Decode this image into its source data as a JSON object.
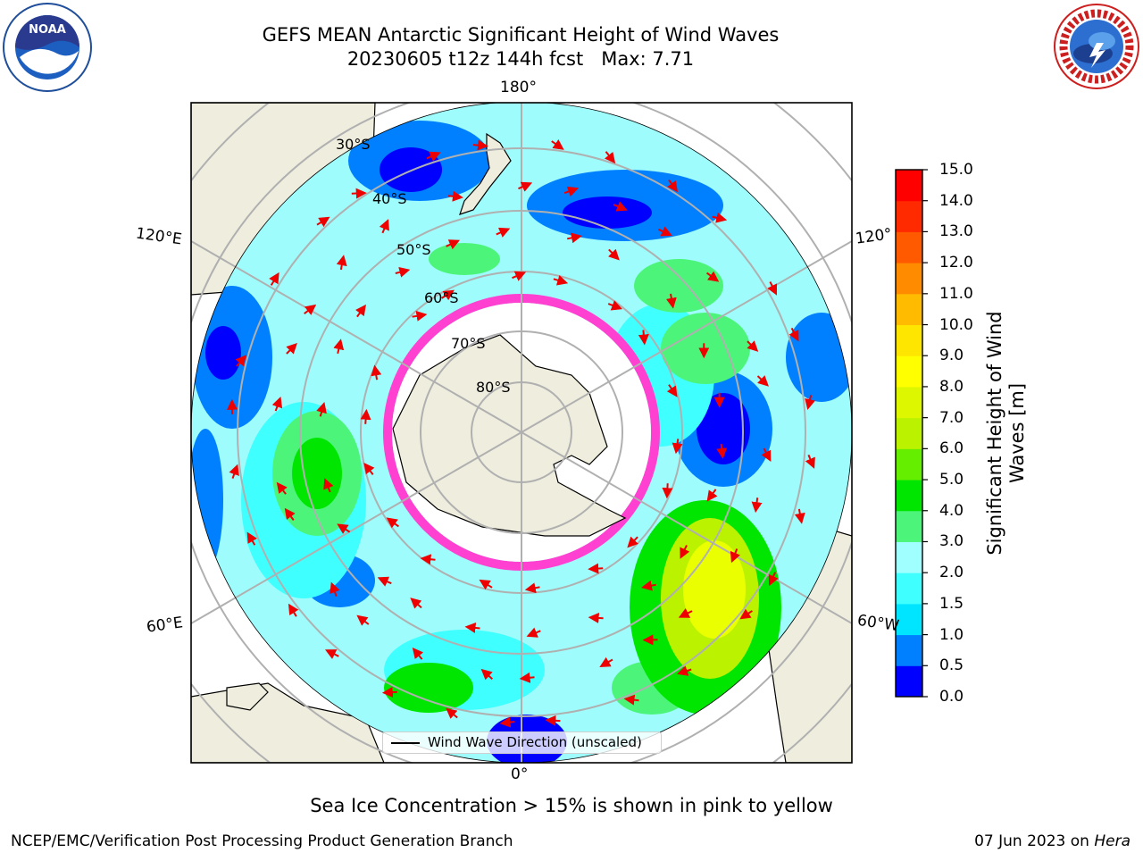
{
  "title": {
    "line1": "GEFS MEAN Antarctic Significant Height of Wind Waves",
    "line2": "20230605 t12z 144h fcst   Max: 7.71"
  },
  "logos": {
    "left": "noaa-logo",
    "left_text": "NOAA",
    "right": "national-weather-service-logo"
  },
  "map": {
    "longitude_labels": {
      "top": "180°",
      "bottom": "0°",
      "upper_left": "120°E",
      "upper_right": "120°",
      "lower_left": "60°E",
      "lower_right": "60°W"
    },
    "latitude_labels": [
      "30°S",
      "40°S",
      "50°S",
      "60°S",
      "70°S",
      "80°S"
    ]
  },
  "legend": {
    "label": "Wind Wave Direction (unscaled)",
    "line_color": "#000000"
  },
  "colorbar": {
    "label": "Significant Height of Wind\nWaves [m]",
    "ticks": [
      "0.0",
      "0.5",
      "1.0",
      "1.5",
      "2.0",
      "3.0",
      "4.0",
      "5.0",
      "6.0",
      "7.0",
      "8.0",
      "9.0",
      "10.0",
      "11.0",
      "12.0",
      "13.0",
      "14.0",
      "15.0"
    ],
    "colors": [
      "#0000ff",
      "#0080ff",
      "#00e5ff",
      "#40ffff",
      "#a0ffff",
      "#4cf57a",
      "#00e600",
      "#66ee00",
      "#bbf200",
      "#ddf700",
      "#ffff00",
      "#ffe600",
      "#ffbb00",
      "#ff8c00",
      "#ff5a00",
      "#ff2a00",
      "#ff0000"
    ]
  },
  "caption": "Sea Ice Concentration > 15% is shown in pink to yellow",
  "footer": {
    "left": "NCEP/EMC/Verification Post Processing Product Generation Branch",
    "right_date": "07 Jun 2023 on ",
    "right_host": "Hera"
  }
}
